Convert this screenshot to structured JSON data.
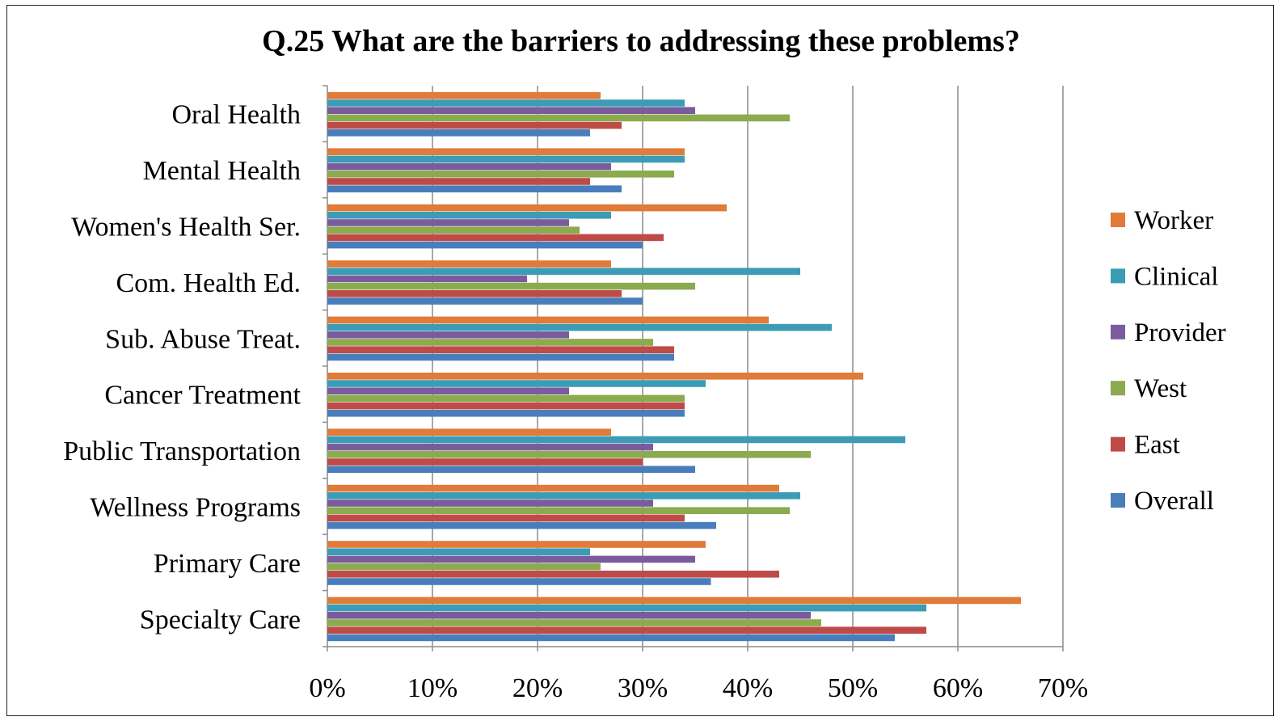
{
  "chart_data": {
    "type": "bar",
    "orientation": "horizontal",
    "title": "Q.25 What are the barriers to addressing these problems?",
    "categories": [
      "Oral Health",
      "Mental Health",
      "Women's Health Ser.",
      "Com. Health Ed.",
      "Sub. Abuse Treat.",
      "Cancer Treatment",
      "Public Transportation",
      "Wellness Programs",
      "Primary Care",
      "Specialty Care"
    ],
    "series": [
      {
        "name": "Worker",
        "color": "#E07B39",
        "values": [
          26,
          34,
          38,
          27,
          42,
          51,
          27,
          43,
          36,
          66
        ]
      },
      {
        "name": "Clinical",
        "color": "#3C9CB5",
        "values": [
          34,
          34,
          27,
          45,
          48,
          36,
          55,
          45,
          25,
          57
        ]
      },
      {
        "name": "Provider",
        "color": "#7A5C9E",
        "values": [
          35,
          27,
          23,
          19,
          23,
          23,
          31,
          31,
          35,
          46
        ]
      },
      {
        "name": "West",
        "color": "#8CAA4E",
        "values": [
          44,
          33,
          24,
          35,
          31,
          34,
          46,
          44,
          26,
          47
        ]
      },
      {
        "name": "East",
        "color": "#BE4B48",
        "values": [
          28,
          25,
          32,
          28,
          33,
          34,
          30,
          34,
          43,
          57
        ]
      },
      {
        "name": "Overall",
        "color": "#4A7EBB",
        "values": [
          25,
          28,
          30,
          30,
          33,
          34,
          35,
          37,
          36.5,
          54
        ]
      }
    ],
    "xlim": [
      0,
      70
    ],
    "xticks": [
      "0%",
      "10%",
      "20%",
      "30%",
      "40%",
      "50%",
      "60%",
      "70%"
    ],
    "grid": "vertical",
    "legend_position": "right",
    "xlabel": "",
    "ylabel": ""
  }
}
